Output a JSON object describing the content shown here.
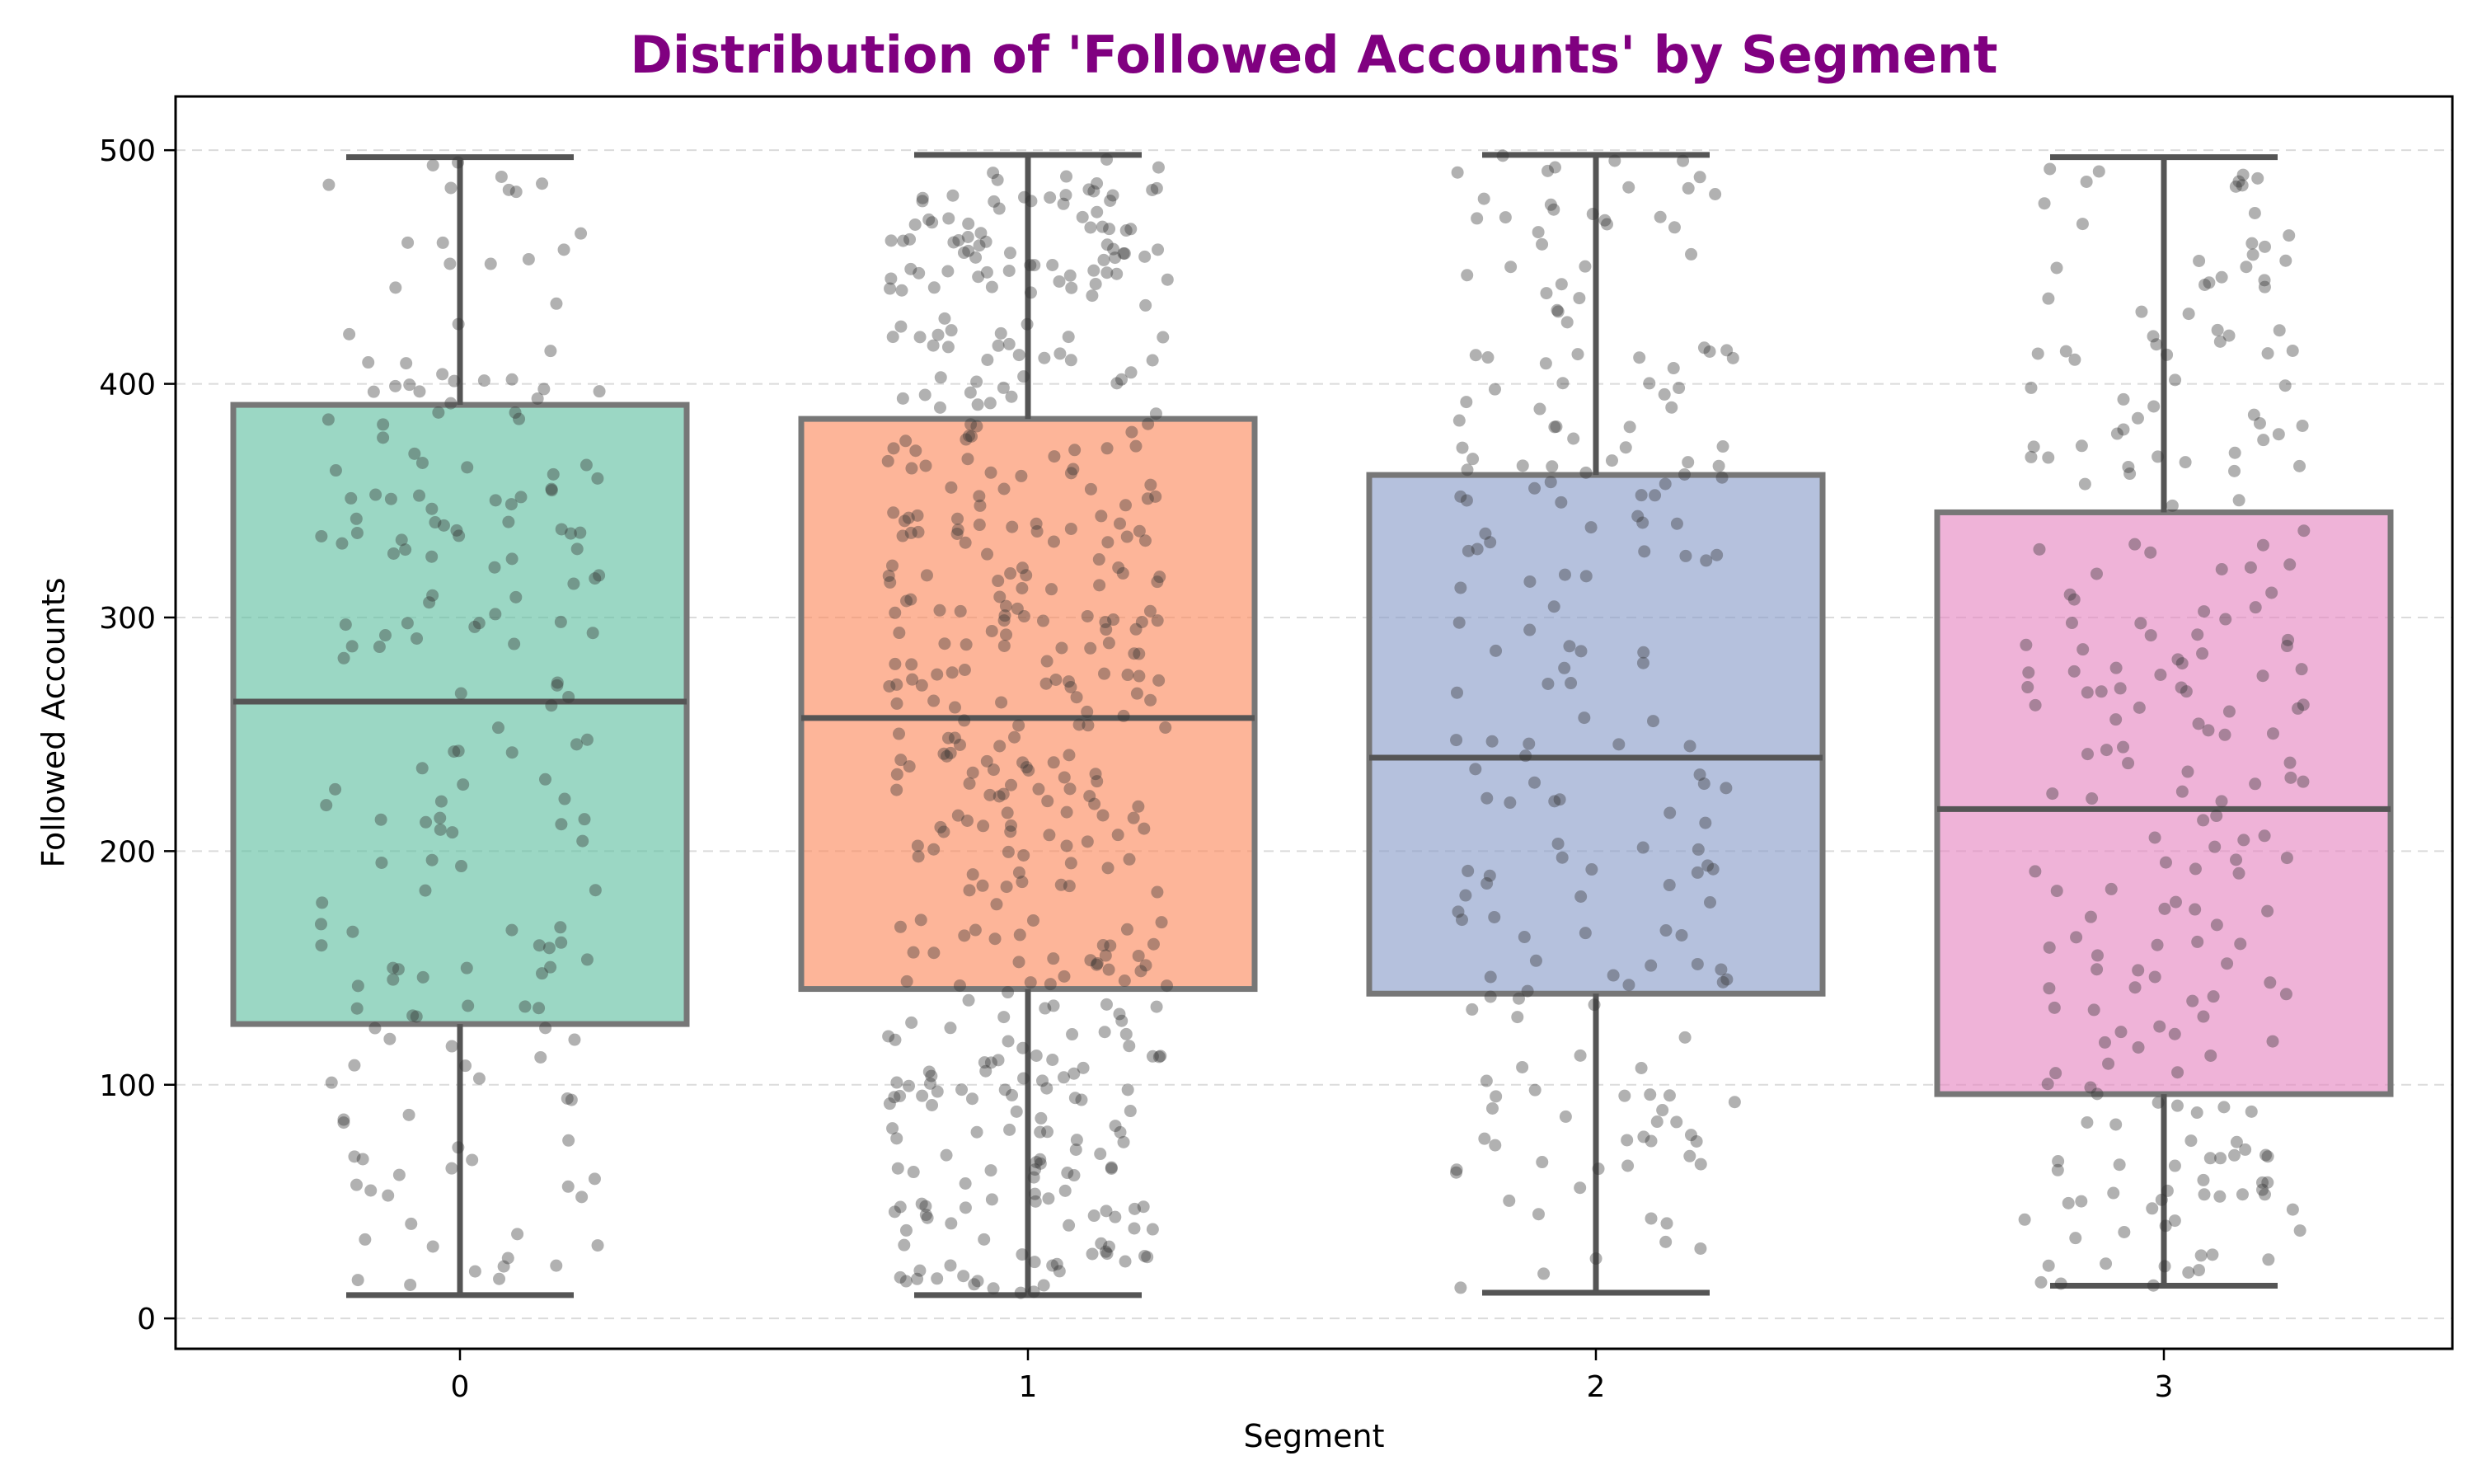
{
  "chart_data": {
    "type": "box",
    "title": "Distribution of 'Followed Accounts' by Segment",
    "title_color": "#800080",
    "xlabel": "Segment",
    "ylabel": "Followed Accounts",
    "ylim": [
      -13,
      523
    ],
    "yticks": [
      0,
      100,
      200,
      300,
      400,
      500
    ],
    "grid": "horizontal dashed",
    "categories": [
      "0",
      "1",
      "2",
      "3"
    ],
    "boxes": [
      {
        "category": "0",
        "whisker_low": 10,
        "q1": 126,
        "median": 264,
        "q3": 391,
        "whisker_high": 497,
        "color": "#66c2a5"
      },
      {
        "category": "1",
        "whisker_low": 10,
        "q1": 141,
        "median": 257,
        "q3": 385,
        "whisker_high": 498,
        "color": "#fc8d62"
      },
      {
        "category": "2",
        "whisker_low": 11,
        "q1": 139,
        "median": 240,
        "q3": 361,
        "whisker_high": 498,
        "color": "#8da0cb"
      },
      {
        "category": "3",
        "whisker_low": 14,
        "q1": 96,
        "median": 218,
        "q3": 345,
        "whisker_high": 497,
        "color": "#e78ac3"
      }
    ],
    "jitter_points_approx_count": [
      190,
      480,
      200,
      230
    ],
    "jitter_color": "#333333"
  }
}
